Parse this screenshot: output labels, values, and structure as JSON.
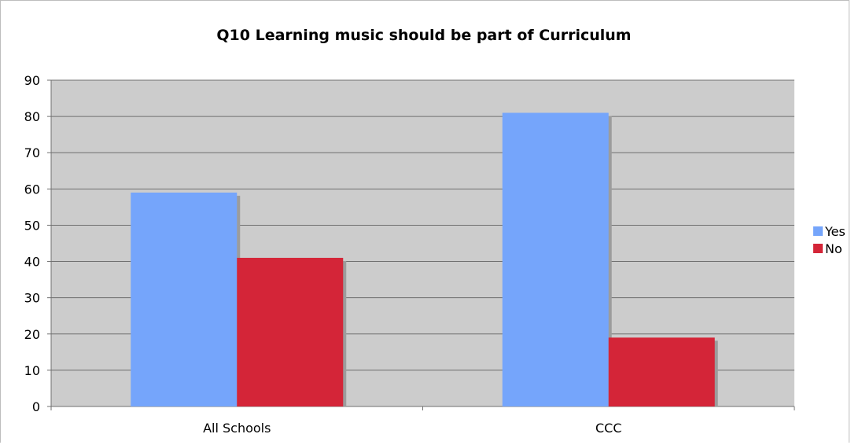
{
  "chart_data": {
    "type": "bar",
    "title": "Q10 Learning music should be part of Curriculum",
    "categories": [
      "All Schools",
      "CCC"
    ],
    "series": [
      {
        "name": "Yes",
        "color": "#75a5fb",
        "values": [
          59,
          81
        ]
      },
      {
        "name": "No",
        "color": "#d42538",
        "values": [
          41,
          19
        ]
      }
    ],
    "ylim": [
      0,
      90
    ],
    "yticks": [
      "0",
      "10",
      "20",
      "30",
      "40",
      "50",
      "60",
      "70",
      "80",
      "90"
    ],
    "grid": true,
    "legend_position": "right",
    "plot_background": "#cccccc"
  }
}
